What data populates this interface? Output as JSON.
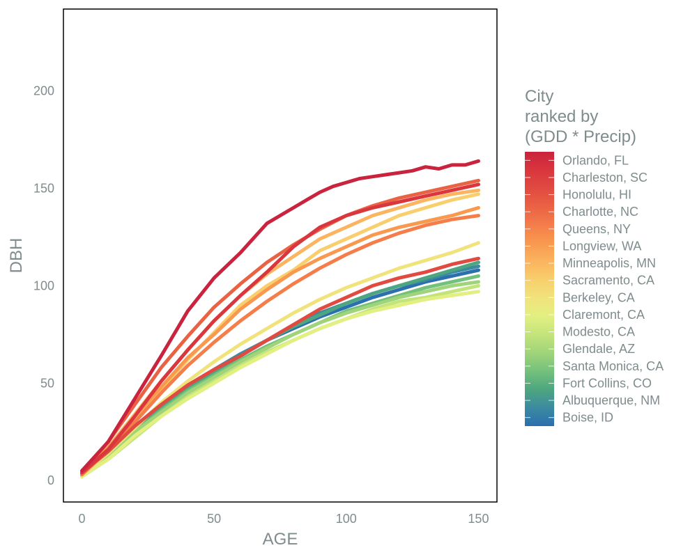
{
  "chart_data": {
    "type": "line",
    "xlabel": "AGE",
    "ylabel": "DBH",
    "xlim": [
      -7,
      157
    ],
    "ylim": [
      -11,
      242
    ],
    "x_ticks": [
      0,
      50,
      100,
      150
    ],
    "y_ticks": [
      0,
      50,
      100,
      150,
      200
    ],
    "grid": false,
    "legend": {
      "title": [
        "City",
        "ranked by",
        "(GDD * Precip)"
      ],
      "placement": "right",
      "colors": [
        "#c9233d",
        "#d9363d",
        "#e14a41",
        "#ea6244",
        "#f47d4a",
        "#f8994f",
        "#fbb45f",
        "#f8cf6c",
        "#f1e37c",
        "#e2ef81",
        "#c3e47b",
        "#9fd47a",
        "#74c17c",
        "#4ea680",
        "#3b8aa0",
        "#2b6fae"
      ]
    },
    "series": [
      {
        "name": "Orlando, FL",
        "color": "#c9233d",
        "x": [
          0,
          10,
          20,
          30,
          40,
          50,
          60,
          70,
          80,
          85,
          90,
          95,
          100,
          105,
          110,
          115,
          120,
          125,
          130,
          135,
          140,
          145,
          150
        ],
        "values": [
          5,
          20,
          42,
          64,
          87,
          104,
          117,
          132,
          140,
          144,
          148,
          151,
          153,
          155,
          156,
          157,
          158,
          159,
          161,
          160,
          162,
          162,
          164
        ]
      },
      {
        "name": "Charleston, SC",
        "color": "#d9363d",
        "x": [
          0,
          10,
          20,
          30,
          40,
          50,
          60,
          70,
          80,
          90,
          100,
          110,
          120,
          130,
          140,
          150
        ],
        "values": [
          4,
          16,
          33,
          51,
          67,
          82,
          95,
          107,
          120,
          130,
          136,
          140,
          143,
          146,
          149,
          152
        ]
      },
      {
        "name": "Honolulu, HI",
        "color": "#e14a41",
        "x": [
          0,
          10,
          20,
          30,
          40,
          50,
          60,
          70,
          80,
          90,
          100,
          110,
          120,
          130,
          140,
          150
        ],
        "values": [
          4,
          15,
          28,
          39,
          49,
          57,
          64,
          72,
          80,
          88,
          94,
          100,
          104,
          107,
          111,
          114
        ]
      },
      {
        "name": "Charlotte, NC",
        "color": "#ea6244",
        "x": [
          0,
          10,
          20,
          30,
          40,
          50,
          60,
          70,
          80,
          90,
          100,
          110,
          120,
          130,
          140,
          150
        ],
        "values": [
          4,
          20,
          39,
          58,
          74,
          89,
          101,
          112,
          121,
          129,
          136,
          141,
          145,
          148,
          151,
          154
        ]
      },
      {
        "name": "Queens, NY",
        "color": "#f47d4a",
        "x": [
          0,
          10,
          20,
          30,
          40,
          50,
          60,
          70,
          80,
          90,
          100,
          110,
          120,
          130,
          140,
          150
        ],
        "values": [
          3,
          16,
          30,
          45,
          59,
          71,
          82,
          92,
          101,
          109,
          116,
          122,
          127,
          131,
          134,
          136
        ]
      },
      {
        "name": "Longview, WA",
        "color": "#f8994f",
        "x": [
          0,
          10,
          20,
          30,
          40,
          50,
          60,
          70,
          80,
          90,
          100,
          110,
          120,
          130,
          140,
          150
        ],
        "values": [
          3,
          17,
          33,
          48,
          63,
          75,
          88,
          98,
          107,
          114,
          120,
          126,
          130,
          133,
          136,
          140
        ]
      },
      {
        "name": "Minneapolis, MN",
        "color": "#fbb45f",
        "x": [
          0,
          10,
          20,
          30,
          40,
          50,
          60,
          70,
          80,
          90,
          100,
          110,
          120,
          130,
          140,
          150
        ],
        "values": [
          3,
          17,
          34,
          51,
          67,
          82,
          95,
          106,
          115,
          124,
          130,
          136,
          140,
          144,
          147,
          149
        ]
      },
      {
        "name": "Sacramento, CA",
        "color": "#f8cf6c",
        "x": [
          0,
          10,
          20,
          30,
          40,
          50,
          60,
          70,
          80,
          90,
          100,
          110,
          120,
          130,
          140,
          150
        ],
        "values": [
          3,
          15,
          32,
          47,
          62,
          76,
          90,
          100,
          108,
          118,
          124,
          130,
          136,
          140,
          144,
          147
        ]
      },
      {
        "name": "Berkeley, CA",
        "color": "#f1e37c",
        "x": [
          0,
          10,
          20,
          30,
          40,
          50,
          60,
          70,
          80,
          90,
          100,
          110,
          120,
          130,
          140,
          150
        ],
        "values": [
          3,
          14,
          27,
          40,
          51,
          61,
          70,
          78,
          86,
          93,
          99,
          104,
          109,
          113,
          117,
          122
        ]
      },
      {
        "name": "Claremont, CA",
        "color": "#e2ef81",
        "x": [
          0,
          10,
          20,
          30,
          40,
          50,
          60,
          70,
          80,
          90,
          100,
          110,
          120,
          130,
          140,
          150
        ],
        "values": [
          2,
          11,
          23,
          33,
          42,
          50,
          58,
          65,
          72,
          78,
          83,
          87,
          90,
          93,
          95,
          97
        ]
      },
      {
        "name": "Modesto, CA",
        "color": "#c3e47b",
        "x": [
          0,
          10,
          20,
          30,
          40,
          50,
          60,
          70,
          80,
          90,
          100,
          110,
          120,
          130,
          140,
          150
        ],
        "values": [
          2,
          11,
          22,
          33,
          43,
          51,
          59,
          66,
          72,
          78,
          83,
          88,
          92,
          94,
          97,
          100
        ]
      },
      {
        "name": "Glendale, AZ",
        "color": "#9fd47a",
        "x": [
          0,
          10,
          20,
          30,
          40,
          50,
          60,
          70,
          80,
          90,
          100,
          110,
          120,
          130,
          140,
          150
        ],
        "values": [
          3,
          13,
          25,
          35,
          45,
          53,
          61,
          68,
          75,
          81,
          86,
          90,
          94,
          97,
          100,
          102
        ]
      },
      {
        "name": "Santa Monica, CA",
        "color": "#74c17c",
        "x": [
          0,
          10,
          20,
          30,
          40,
          50,
          60,
          70,
          80,
          90,
          100,
          110,
          120,
          130,
          140,
          150
        ],
        "values": [
          3,
          13,
          25,
          36,
          46,
          54,
          62,
          69,
          75,
          81,
          87,
          91,
          95,
          99,
          102,
          105
        ]
      },
      {
        "name": "Fort Collins, CO",
        "color": "#4ea680",
        "x": [
          0,
          10,
          20,
          30,
          40,
          50,
          60,
          70,
          80,
          90,
          100,
          110,
          120,
          130,
          140,
          150
        ],
        "values": [
          3,
          14,
          26,
          38,
          47,
          56,
          64,
          72,
          79,
          85,
          91,
          96,
          100,
          104,
          108,
          112
        ]
      },
      {
        "name": "Albuquerque, NM",
        "color": "#3b8aa0",
        "x": [
          0,
          10,
          20,
          30,
          40,
          50,
          60,
          70,
          80,
          90,
          100,
          110,
          120,
          130,
          140,
          150
        ],
        "values": [
          3,
          14,
          27,
          38,
          48,
          57,
          65,
          72,
          79,
          86,
          91,
          96,
          100,
          103,
          107,
          110
        ]
      },
      {
        "name": "Boise, ID",
        "color": "#2b6fae",
        "x": [
          0,
          10,
          20,
          30,
          40,
          50,
          60,
          70,
          80,
          90,
          100,
          110,
          120,
          130,
          140,
          150
        ],
        "values": [
          3,
          14,
          27,
          38,
          48,
          56,
          64,
          72,
          78,
          84,
          89,
          94,
          98,
          102,
          105,
          108
        ]
      }
    ]
  }
}
